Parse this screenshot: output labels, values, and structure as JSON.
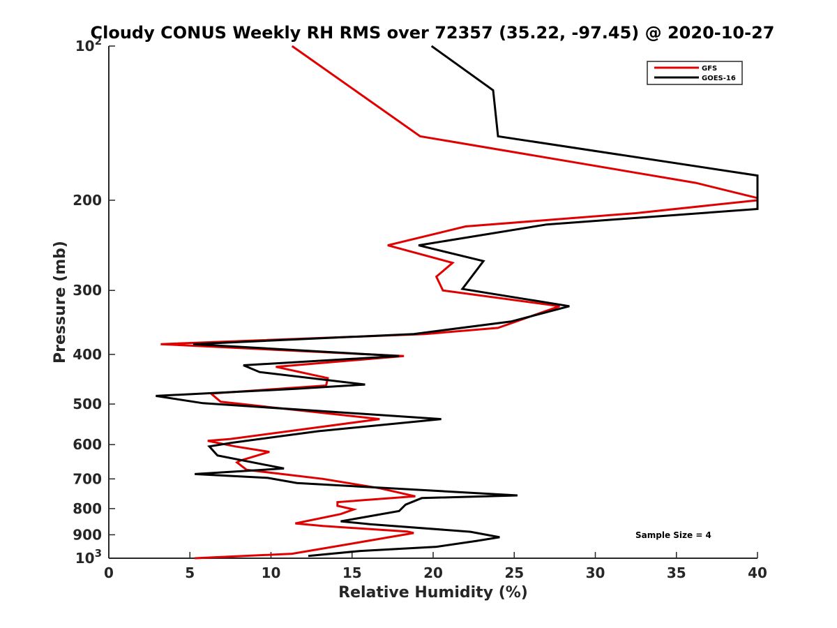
{
  "chart_data": {
    "type": "line",
    "title": "Cloudy CONUS Weekly RH RMS over 72357 (35.22, -97.45) @ 2020-10-27",
    "xlabel": "Relative Humidity (%)",
    "ylabel": "Pressure (mb)",
    "xlim": [
      0,
      40
    ],
    "ylim": [
      100,
      1000
    ],
    "yscale": "log",
    "y_reversed": true,
    "grid": false,
    "legend_position": "top-right",
    "x_ticks": [
      {
        "value": 0,
        "label": "0"
      },
      {
        "value": 5,
        "label": "5"
      },
      {
        "value": 10,
        "label": "10"
      },
      {
        "value": 15,
        "label": "15"
      },
      {
        "value": 20,
        "label": "20"
      },
      {
        "value": 25,
        "label": "25"
      },
      {
        "value": 30,
        "label": "30"
      },
      {
        "value": 35,
        "label": "35"
      },
      {
        "value": 40,
        "label": "40"
      }
    ],
    "y_ticks": [
      {
        "value": 100,
        "base": "10",
        "exp": "2"
      },
      {
        "value": 200,
        "base": "200",
        "exp": ""
      },
      {
        "value": 300,
        "base": "300",
        "exp": ""
      },
      {
        "value": 400,
        "base": "400",
        "exp": ""
      },
      {
        "value": 500,
        "base": "500",
        "exp": ""
      },
      {
        "value": 600,
        "base": "600",
        "exp": ""
      },
      {
        "value": 700,
        "base": "700",
        "exp": ""
      },
      {
        "value": 800,
        "base": "800",
        "exp": ""
      },
      {
        "value": 900,
        "base": "900",
        "exp": ""
      },
      {
        "value": 1000,
        "base": "10",
        "exp": "3"
      }
    ],
    "annotation": "Sample Size = 4",
    "series": [
      {
        "name": "GFS",
        "color": "#e00000",
        "points": [
          [
            11.3,
            100
          ],
          [
            19.2,
            150
          ],
          [
            36.2,
            185
          ],
          [
            40,
            198
          ],
          [
            40,
            200
          ],
          [
            32.5,
            212
          ],
          [
            22.0,
            225
          ],
          [
            17.2,
            245
          ],
          [
            21.2,
            265
          ],
          [
            20.2,
            282
          ],
          [
            20.6,
            300
          ],
          [
            27.8,
            322
          ],
          [
            24.0,
            355
          ],
          [
            19.5,
            365
          ],
          [
            3.2,
            382
          ],
          [
            18.2,
            403
          ],
          [
            10.3,
            423
          ],
          [
            13.5,
            445
          ],
          [
            13.4,
            460
          ],
          [
            6.3,
            477
          ],
          [
            6.9,
            495
          ],
          [
            16.7,
            535
          ],
          [
            7.5,
            585
          ],
          [
            6.1,
            590
          ],
          [
            7.8,
            605
          ],
          [
            9.9,
            620
          ],
          [
            8.1,
            645
          ],
          [
            7.9,
            650
          ],
          [
            8.5,
            672
          ],
          [
            13.2,
            700
          ],
          [
            16.7,
            730
          ],
          [
            18.9,
            757
          ],
          [
            14.1,
            777
          ],
          [
            14.1,
            790
          ],
          [
            15.1,
            803
          ],
          [
            14.3,
            820
          ],
          [
            11.5,
            855
          ],
          [
            13.2,
            865
          ],
          [
            18.4,
            887
          ],
          [
            18.8,
            893
          ],
          [
            15.1,
            935
          ],
          [
            11.3,
            980
          ],
          [
            5.3,
            1000
          ]
        ]
      },
      {
        "name": "GOES-16",
        "color": "#000000",
        "points": [
          [
            19.9,
            100
          ],
          [
            23.7,
            122
          ],
          [
            24.0,
            150
          ],
          [
            40,
            179
          ],
          [
            40,
            208
          ],
          [
            27.0,
            223
          ],
          [
            19.1,
            245
          ],
          [
            23.1,
            263
          ],
          [
            21.8,
            298
          ],
          [
            28.4,
            322
          ],
          [
            24.8,
            345
          ],
          [
            18.8,
            365
          ],
          [
            5.2,
            382
          ],
          [
            17.9,
            403
          ],
          [
            8.3,
            420
          ],
          [
            9.3,
            433
          ],
          [
            15.8,
            458
          ],
          [
            11.5,
            467
          ],
          [
            2.9,
            482
          ],
          [
            5.8,
            498
          ],
          [
            20.5,
            535
          ],
          [
            12.9,
            565
          ],
          [
            7.6,
            595
          ],
          [
            6.2,
            605
          ],
          [
            6.7,
            630
          ],
          [
            10.8,
            668
          ],
          [
            5.3,
            685
          ],
          [
            9.8,
            697
          ],
          [
            11.6,
            713
          ],
          [
            25.2,
            754
          ],
          [
            19.3,
            763
          ],
          [
            18.3,
            786
          ],
          [
            17.9,
            809
          ],
          [
            14.3,
            847
          ],
          [
            16.1,
            858
          ],
          [
            22.3,
            888
          ],
          [
            24.1,
            910
          ],
          [
            22.7,
            925
          ],
          [
            20.2,
            950
          ],
          [
            15.5,
            968
          ],
          [
            12.3,
            990
          ]
        ]
      }
    ]
  }
}
